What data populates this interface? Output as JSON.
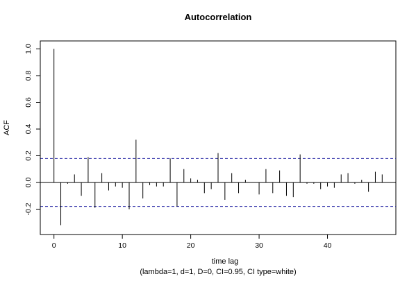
{
  "chart_data": {
    "type": "bar",
    "title": "Autocorrelation",
    "xlabel": "time lag",
    "subtitle": "(lambda=1, d=1, D=0, CI=0.95, CI type=white)",
    "ylabel": "ACF",
    "xlim": [
      -2.0,
      50.0
    ],
    "ylim": [
      -0.39,
      1.06
    ],
    "xticks": [
      0,
      10,
      20,
      30,
      40
    ],
    "yticks": [
      -0.2,
      0.0,
      0.2,
      0.4,
      0.6,
      0.8,
      1.0
    ],
    "xtick_labels": [
      "0",
      "10",
      "20",
      "30",
      "40"
    ],
    "ytick_labels": [
      "-0.2",
      "0.0",
      "0.2",
      "0.4",
      "0.6",
      "0.8",
      "1.0"
    ],
    "confidence_bounds": [
      0.18,
      -0.18
    ],
    "bound_color": "#3333aa",
    "lags": [
      0,
      1,
      2,
      3,
      4,
      5,
      6,
      7,
      8,
      9,
      10,
      11,
      12,
      13,
      14,
      15,
      16,
      17,
      18,
      19,
      20,
      21,
      22,
      23,
      24,
      25,
      26,
      27,
      28,
      29,
      30,
      31,
      32,
      33,
      34,
      35,
      36,
      37,
      38,
      39,
      40,
      41,
      42,
      43,
      44,
      45,
      46,
      47,
      48
    ],
    "values": [
      1.0,
      -0.32,
      -0.01,
      0.06,
      -0.1,
      0.19,
      -0.19,
      0.07,
      -0.06,
      -0.03,
      -0.04,
      -0.2,
      0.32,
      -0.12,
      -0.02,
      -0.03,
      -0.03,
      0.18,
      -0.18,
      0.1,
      0.03,
      0.02,
      -0.08,
      -0.05,
      0.22,
      -0.13,
      0.07,
      -0.08,
      0.02,
      0.0,
      -0.09,
      0.1,
      -0.08,
      0.09,
      -0.1,
      -0.11,
      0.21,
      -0.01,
      -0.01,
      -0.05,
      -0.03,
      -0.04,
      0.06,
      0.07,
      -0.01,
      0.02,
      -0.07,
      0.08,
      0.06
    ]
  }
}
